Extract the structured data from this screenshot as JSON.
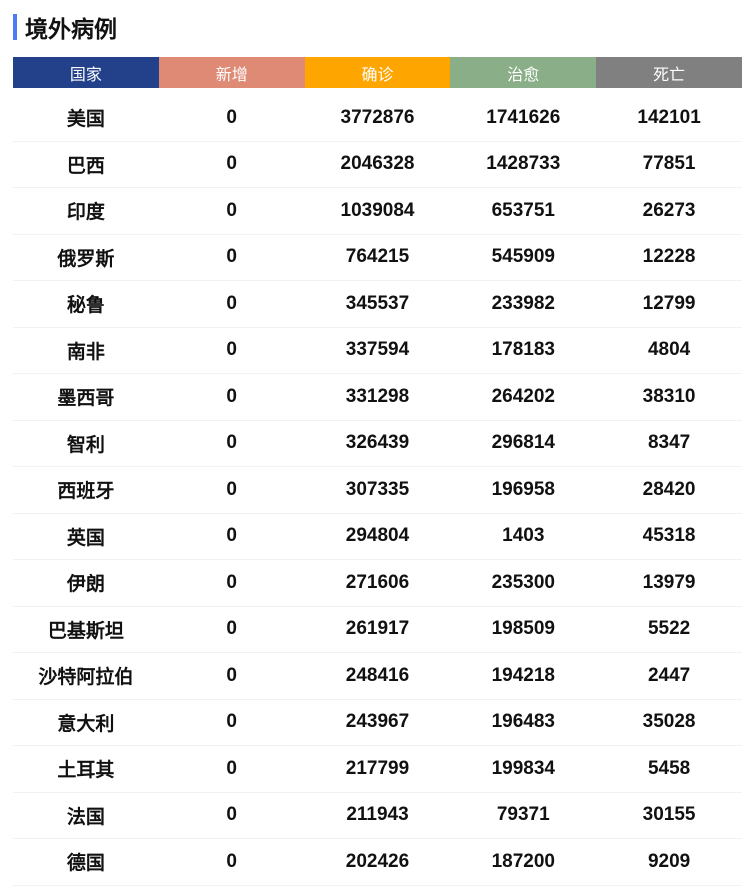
{
  "title": "境外病例",
  "colors": {
    "accent": "#4f7af5",
    "country": "#22418a",
    "new": "#df8a75",
    "confirmed": "#ffa500",
    "cured": "#8aae88",
    "dead": "#808080"
  },
  "headers": [
    "国家",
    "新增",
    "确诊",
    "治愈",
    "死亡"
  ],
  "rows": [
    [
      "美国",
      "0",
      "3772876",
      "1741626",
      "142101"
    ],
    [
      "巴西",
      "0",
      "2046328",
      "1428733",
      "77851"
    ],
    [
      "印度",
      "0",
      "1039084",
      "653751",
      "26273"
    ],
    [
      "俄罗斯",
      "0",
      "764215",
      "545909",
      "12228"
    ],
    [
      "秘鲁",
      "0",
      "345537",
      "233982",
      "12799"
    ],
    [
      "南非",
      "0",
      "337594",
      "178183",
      "4804"
    ],
    [
      "墨西哥",
      "0",
      "331298",
      "264202",
      "38310"
    ],
    [
      "智利",
      "0",
      "326439",
      "296814",
      "8347"
    ],
    [
      "西班牙",
      "0",
      "307335",
      "196958",
      "28420"
    ],
    [
      "英国",
      "0",
      "294804",
      "1403",
      "45318"
    ],
    [
      "伊朗",
      "0",
      "271606",
      "235300",
      "13979"
    ],
    [
      "巴基斯坦",
      "0",
      "261917",
      "198509",
      "5522"
    ],
    [
      "沙特阿拉伯",
      "0",
      "248416",
      "194218",
      "2447"
    ],
    [
      "意大利",
      "0",
      "243967",
      "196483",
      "35028"
    ],
    [
      "土耳其",
      "0",
      "217799",
      "199834",
      "5458"
    ],
    [
      "法国",
      "0",
      "211943",
      "79371",
      "30155"
    ],
    [
      "德国",
      "0",
      "202426",
      "187200",
      "9209"
    ]
  ]
}
